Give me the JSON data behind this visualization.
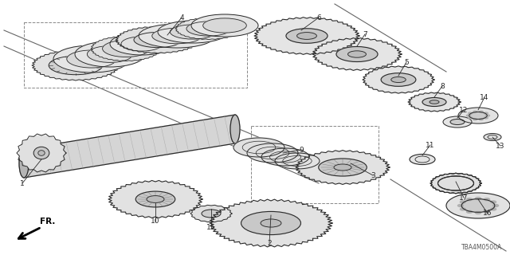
{
  "background_color": "#ffffff",
  "diagram_code": "TBA4M0500A",
  "line_color": "#2a2a2a",
  "gray_fill": "#e8e8e8",
  "dark_gray": "#b0b0b0",
  "mid_gray": "#d0d0d0"
}
